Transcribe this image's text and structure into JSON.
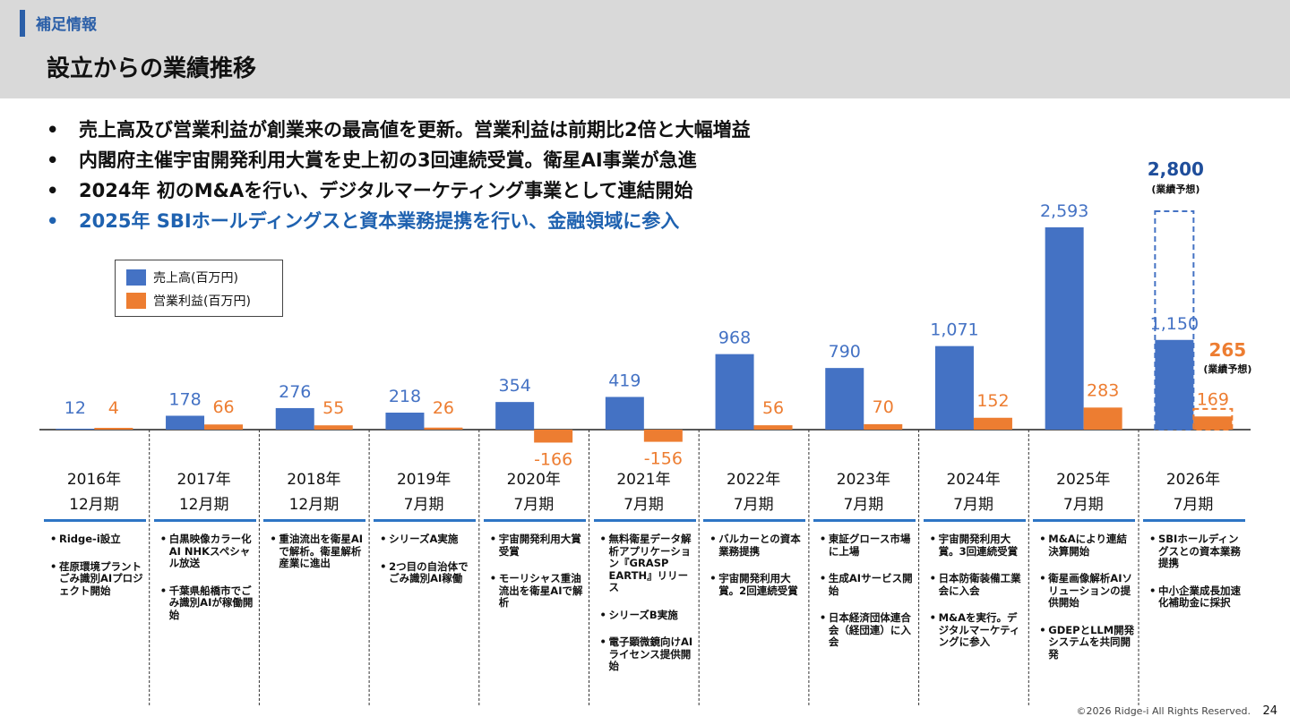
{
  "header": {
    "section_label": "補足情報",
    "title": "設立からの業績推移"
  },
  "bullets": [
    "売上高及び営業利益が創業来の最高値を更新。営業利益は前期比2倍と大幅増益",
    "内閣府主催宇宙開発利用大賞を史上初の3回連続受賞。衛星AI事業が急進",
    "2024年 初のM&Aを行い、デジタルマーケティング事業として連結開始",
    "2025年 SBIホールディングスと資本業務提携を行い、金融領域に参入"
  ],
  "legend": {
    "sales": "売上高(百万円)",
    "op": "営業利益(百万円)"
  },
  "colors": {
    "sales": "#4472c4",
    "op": "#ed7d31",
    "accent": "#2e75c5",
    "forecast_text": "#1f4e9b"
  },
  "chart_data": {
    "type": "bar",
    "title": "設立からの業績推移",
    "categories": [
      "2016年12月期",
      "2017年12月期",
      "2018年12月期",
      "2019年7月期",
      "2020年7月期",
      "2021年7月期",
      "2022年7月期",
      "2023年7月期",
      "2024年7月期",
      "2025年7月期",
      "2026年7月期"
    ],
    "series": [
      {
        "name": "売上高(百万円)",
        "values": [
          12,
          178,
          276,
          218,
          354,
          419,
          968,
          790,
          1071,
          2593,
          1150
        ]
      },
      {
        "name": "営業利益(百万円)",
        "values": [
          4,
          66,
          55,
          26,
          -166,
          -156,
          56,
          70,
          152,
          283,
          169
        ]
      }
    ],
    "value_labels": {
      "sales": [
        "12",
        "178",
        "276",
        "218",
        "354",
        "419",
        "968",
        "790",
        "1,071",
        "2,593",
        "1,150"
      ],
      "op": [
        "4",
        "66",
        "55",
        "26",
        "-166",
        "-156",
        "56",
        "70",
        "152",
        "283",
        "169"
      ]
    },
    "forecast": {
      "sales_value": 2800,
      "sales_label": "2,800",
      "op_value": 265,
      "op_label": "265",
      "note": "(業績予想)"
    },
    "ylim": [
      -200,
      2850
    ],
    "xlabel": "",
    "ylabel": ""
  },
  "years": [
    {
      "year": "2016年",
      "period": "12月期"
    },
    {
      "year": "2017年",
      "period": "12月期"
    },
    {
      "year": "2018年",
      "period": "12月期"
    },
    {
      "year": "2019年",
      "period": "7月期"
    },
    {
      "year": "2020年",
      "period": "7月期"
    },
    {
      "year": "2021年",
      "period": "7月期"
    },
    {
      "year": "2022年",
      "period": "7月期"
    },
    {
      "year": "2023年",
      "period": "7月期"
    },
    {
      "year": "2024年",
      "period": "7月期"
    },
    {
      "year": "2025年",
      "period": "7月期"
    },
    {
      "year": "2026年",
      "period": "7月期"
    }
  ],
  "events": [
    [
      "Ridge-i設立",
      "荏原環境プラントごみ識別AIプロジェクト開始"
    ],
    [
      "白黒映像カラー化AI NHKスペシャル放送",
      "千葉県船橋市でごみ識別AIが稼働開始"
    ],
    [
      "重油流出を衛星AIで解析。衛星解析産業に進出"
    ],
    [
      "シリーズA実施",
      "2つ目の自治体でごみ識別AI稼働"
    ],
    [
      "宇宙開発利用大賞受賞",
      "モーリシャス重油流出を衛星AIで解析"
    ],
    [
      "無料衛星データ解析アプリケーション『GRASP EARTH』リリース",
      "シリーズB実施",
      "電子顕微鏡向けAIライセンス提供開始"
    ],
    [
      "バルカーとの資本業務提携",
      "宇宙開発利用大賞。2回連続受賞"
    ],
    [
      "東証グロース市場に上場",
      "生成AIサービス開始",
      "日本経済団体連合会（経団連）に入会"
    ],
    [
      "宇宙開発利用大賞。3回連続受賞",
      "日本防衛装備工業会に入会",
      "M&Aを実行。デジタルマーケティングに参入"
    ],
    [
      "M&Aにより連結決算開始",
      "衛星画像解析AIソリューションの提供開始",
      "GDEPとLLM開発システムを共同開発"
    ],
    [
      "SBIホールディングスとの資本業務提携",
      "中小企業成長加速化補助金に採択"
    ]
  ],
  "footer": {
    "copyright": "©2026 Ridge-i All Rights Reserved.",
    "page": "24"
  }
}
